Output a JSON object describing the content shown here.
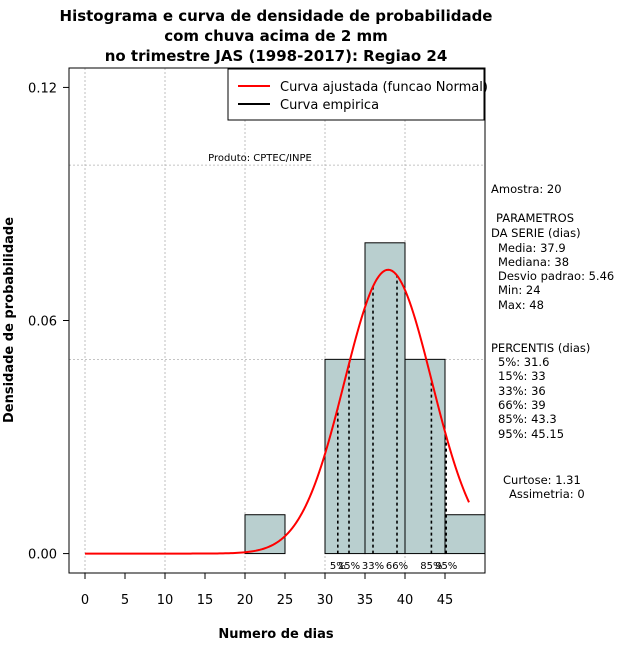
{
  "chart_data": {
    "type": "bar",
    "title_lines": [
      "Histograma e curva de densidade de probabilidade",
      "com chuva acima de 2 mm",
      "no trimestre JAS (1998-2017): Regiao 24"
    ],
    "xlabel": "Numero de dias",
    "ylabel": "Densidade de probabilidade",
    "xlim": [
      -2,
      50
    ],
    "ylim": [
      -0.005,
      0.125
    ],
    "x_ticks": [
      0,
      5,
      10,
      15,
      20,
      25,
      30,
      35,
      40,
      45
    ],
    "x_tick_labels": [
      "0",
      "5",
      "10",
      "15",
      "20",
      "25",
      "30",
      "35",
      "40",
      "45"
    ],
    "y_ticks": [
      0,
      0.06,
      0.12
    ],
    "y_tick_labels": [
      "0.00",
      "0.06",
      "0.12"
    ],
    "bins": [
      {
        "x0": 20,
        "x1": 25,
        "density": 0.01
      },
      {
        "x0": 25,
        "x1": 30,
        "density": 0
      },
      {
        "x0": 30,
        "x1": 35,
        "density": 0.05
      },
      {
        "x0": 35,
        "x1": 40,
        "density": 0.08
      },
      {
        "x0": 40,
        "x1": 45,
        "density": 0.05
      },
      {
        "x0": 45,
        "x1": 50,
        "density": 0.01
      }
    ],
    "normal_fit": {
      "mean": 37.9,
      "sd": 5.46,
      "x_start": 0,
      "x_end": 48
    },
    "grid_x": [
      0,
      10,
      20,
      30,
      40
    ],
    "grid_y": [
      0.05,
      0.1
    ],
    "percentile_lines": [
      31.6,
      33,
      36,
      39,
      43.3,
      45.15
    ],
    "percentile_labels": [
      "5%",
      "15%",
      "33%",
      "66%",
      "85%",
      "95%"
    ],
    "legend": [
      {
        "label": "Curva ajustada (funcao Normal)",
        "color": "#ff0000"
      },
      {
        "label": "Curva empirica",
        "color": "#000000"
      }
    ],
    "legend_position": "top-right",
    "product_label": "Produto: CPTEC/INPE",
    "bar_color": "#b9cfcf",
    "curve_color": "#ff0000"
  },
  "side_panel": {
    "amostra": "Amostra: 20",
    "param_title_1": "PARAMETROS",
    "param_title_2": "DA SERIE (dias)",
    "media": "Media: 37.9",
    "mediana": "Mediana: 38",
    "desvio": "Desvio padrao: 5.46",
    "min": "Min: 24",
    "max": "Max: 48",
    "percentis_title": "PERCENTIS (dias)",
    "p5": "5%: 31.6",
    "p15": "15%: 33",
    "p33": "33%: 36",
    "p66": "66%: 39",
    "p85": "85%: 43.3",
    "p95": "95%: 45.15",
    "curtose": "Curtose: 1.31",
    "assimetria": "Assimetria: 0"
  }
}
